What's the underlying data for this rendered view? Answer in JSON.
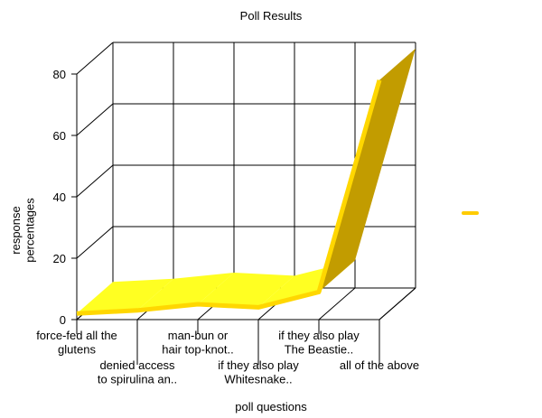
{
  "chart_data": {
    "type": "line3d",
    "title": "Poll Results",
    "xlabel": "poll questions",
    "ylabel": "response\npercentages",
    "categories": [
      "force-fed all the\nglutens",
      "denied access\nto spirulina an..",
      "man-bun or\nhair top-knot..",
      "if they also play\nWhitesnake..",
      "if they also play\nThe Beastie..",
      "all of the above"
    ],
    "values": [
      2,
      3,
      5,
      4,
      9,
      78
    ],
    "color": "#ffd700",
    "ylim": [
      0,
      80
    ],
    "yticks": [
      0,
      20,
      40,
      60,
      80
    ],
    "grid": true
  }
}
